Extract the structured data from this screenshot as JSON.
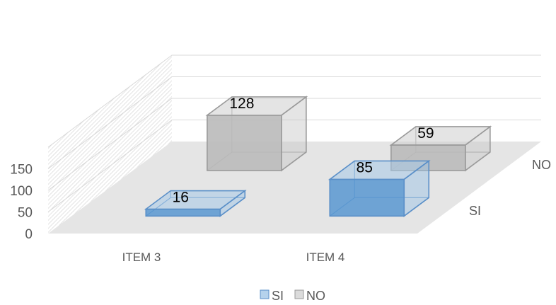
{
  "chart_data": {
    "type": "bar",
    "subtype": "3d-column",
    "categories": [
      "ITEM 3",
      "ITEM 4"
    ],
    "depth_categories": [
      "SI",
      "NO"
    ],
    "series": [
      {
        "name": "SI",
        "values": [
          16,
          85
        ],
        "color": "#5b9bd5"
      },
      {
        "name": "NO",
        "values": [
          128,
          59
        ],
        "color": "#a6a6a6"
      }
    ],
    "ytick_labels": [
      "0",
      "50",
      "100",
      "150"
    ],
    "ylim": [
      0,
      200
    ],
    "grid": true,
    "legend_position": "bottom",
    "legend": [
      "SI",
      "NO"
    ]
  }
}
